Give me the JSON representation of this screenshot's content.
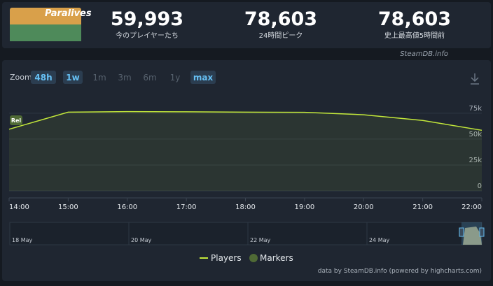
{
  "header": {
    "game": "Paralives",
    "stats": [
      {
        "value": "59,993",
        "label": "今のプレイヤーたち"
      },
      {
        "value": "78,603",
        "label": "24時間ピーク"
      },
      {
        "value": "78,603",
        "label": "史上最高値5時間前"
      }
    ],
    "source": "SteamDB.info"
  },
  "zoom": {
    "label": "Zoom",
    "buttons": [
      {
        "text": "48h",
        "active": true
      },
      {
        "text": "1w",
        "active": true
      },
      {
        "text": "1m",
        "active": false
      },
      {
        "text": "3m",
        "active": false
      },
      {
        "text": "6m",
        "active": false
      },
      {
        "text": "1y",
        "active": false
      },
      {
        "text": "max",
        "active": true
      }
    ]
  },
  "chart_data": {
    "type": "line",
    "x": [
      14,
      15,
      16,
      17,
      18,
      19,
      20,
      21,
      22
    ],
    "series": [
      {
        "name": "Players",
        "color": "#c3e83a",
        "values": [
          59500,
          76000,
          76500,
          76300,
          76000,
          75800,
          73500,
          68000,
          58500
        ]
      }
    ],
    "markers": {
      "name": "Markers",
      "color": "#4f6a35",
      "label": "Rel"
    },
    "xlim": [
      14,
      22
    ],
    "ylim": [
      0,
      83000
    ],
    "xticks": [
      {
        "value": 14,
        "label": "14:00"
      },
      {
        "value": 15,
        "label": "15:00"
      },
      {
        "value": 16,
        "label": "16:00"
      },
      {
        "value": 17,
        "label": "17:00"
      },
      {
        "value": 18,
        "label": "18:00"
      },
      {
        "value": 19,
        "label": "19:00"
      },
      {
        "value": 20,
        "label": "20:00"
      },
      {
        "value": 21,
        "label": "21:00"
      },
      {
        "value": 22,
        "label": "22:00"
      }
    ],
    "yticks": [
      0,
      {
        "value": 25000,
        "label": "25k"
      },
      {
        "value": 50000,
        "label": "50k"
      },
      {
        "value": 75000,
        "label": "75k"
      }
    ],
    "grid": true,
    "navigator_labels": [
      "18 May",
      "20 May",
      "22 May",
      "24 May"
    ],
    "credit": "data by SteamDB.info (powered by highcharts.com)"
  }
}
